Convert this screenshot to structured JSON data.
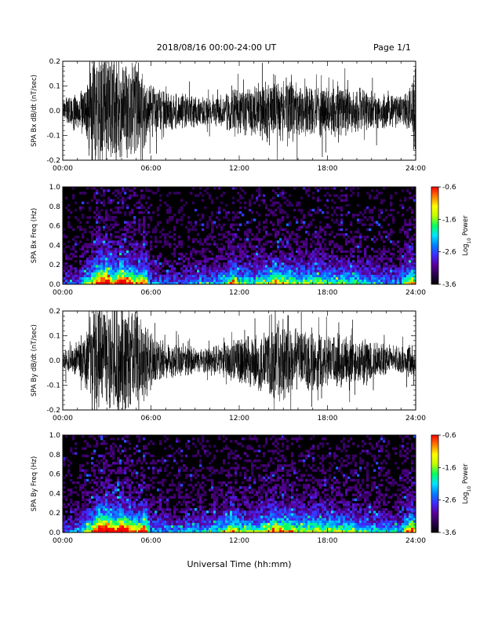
{
  "header": {
    "title": "2018/08/16  00:00-24:00 UT",
    "page": "Page 1/1"
  },
  "x_axis_label": "Universal Time (hh:mm)",
  "colors": {
    "trace": "#000000",
    "spectrogram_background": "#000000",
    "colorscale": [
      "#000000",
      "#2a004f",
      "#5a0099",
      "#3f2bff",
      "#0080ff",
      "#00e5ff",
      "#00ff60",
      "#c0ff00",
      "#ffff00",
      "#ff8000",
      "#ff0000"
    ]
  },
  "colorbar": {
    "label": "Log10 Power",
    "label_prefix": "Log",
    "label_subscript": "10",
    "label_suffix": " Power",
    "ticks": [
      "-0.6",
      "-1.6",
      "-2.6",
      "-3.6"
    ],
    "range": [
      -3.6,
      -0.6
    ]
  },
  "chart_data": [
    {
      "type": "line",
      "ylabel": "SPA Bx dB/dt (nT/sec)",
      "xlim": [
        0,
        24
      ],
      "ylim": [
        -0.2,
        0.2
      ],
      "xticks": [
        "00:00",
        "06:00",
        "12:00",
        "18:00",
        "24:00"
      ],
      "yticks": [
        "0.2",
        "0.1",
        "0.0",
        "-0.1",
        "-0.2"
      ],
      "envelope_hours": [
        0,
        1,
        1.5,
        2,
        2.5,
        3,
        3.5,
        4,
        4.5,
        5,
        5.5,
        6,
        7,
        8,
        9,
        10,
        11,
        11.5,
        12,
        13,
        14,
        14.5,
        15,
        16,
        17,
        18,
        19,
        20,
        21,
        22,
        23,
        23.7,
        24
      ],
      "envelope_amplitude": [
        0.06,
        0.07,
        0.12,
        0.25,
        0.25,
        0.25,
        0.25,
        0.25,
        0.22,
        0.2,
        0.18,
        0.12,
        0.09,
        0.08,
        0.07,
        0.07,
        0.08,
        0.11,
        0.1,
        0.12,
        0.14,
        0.16,
        0.15,
        0.13,
        0.12,
        0.11,
        0.12,
        0.1,
        0.09,
        0.08,
        0.07,
        0.1,
        0.25
      ]
    },
    {
      "type": "heatmap",
      "ylabel": "SPA Bx Freq (Hz)",
      "xlim": [
        0,
        24
      ],
      "ylim": [
        0,
        1
      ],
      "xticks": [
        "00:00",
        "06:00",
        "12:00",
        "18:00",
        "24:00"
      ],
      "yticks": [
        "1.0",
        "0.8",
        "0.6",
        "0.4",
        "0.2",
        "0.0"
      ],
      "zlim": [
        -3.6,
        -0.6
      ],
      "activity_hours": [
        0,
        1,
        2,
        2.5,
        3,
        3.5,
        4,
        4.5,
        5,
        5.5,
        6,
        7,
        8,
        9,
        10,
        11,
        11.5,
        12,
        13,
        14,
        14.5,
        15,
        16,
        17,
        18,
        19,
        20,
        21,
        22,
        23,
        23.8,
        24
      ],
      "activity_level": [
        0.2,
        0.25,
        0.55,
        0.8,
        0.9,
        0.6,
        0.85,
        0.7,
        0.55,
        0.7,
        0.3,
        0.25,
        0.25,
        0.3,
        0.3,
        0.4,
        0.6,
        0.45,
        0.4,
        0.5,
        0.6,
        0.55,
        0.45,
        0.5,
        0.45,
        0.45,
        0.4,
        0.35,
        0.3,
        0.3,
        0.7,
        0.5
      ]
    },
    {
      "type": "line",
      "ylabel": "SPA By dB/dt (nT/sec)",
      "xlim": [
        0,
        24
      ],
      "ylim": [
        -0.2,
        0.2
      ],
      "xticks": [
        "00:00",
        "06:00",
        "12:00",
        "18:00",
        "24:00"
      ],
      "yticks": [
        "0.2",
        "0.1",
        "0.0",
        "-0.1",
        "-0.2"
      ],
      "envelope_hours": [
        0,
        1,
        1.5,
        2,
        2.5,
        3,
        3.5,
        4,
        4.5,
        5,
        5.5,
        6,
        7,
        8,
        9,
        10,
        11,
        11.5,
        12,
        13,
        14,
        14.5,
        15,
        16,
        17,
        18,
        19,
        20,
        21,
        22,
        23,
        23.7,
        24
      ],
      "envelope_amplitude": [
        0.05,
        0.06,
        0.12,
        0.22,
        0.25,
        0.25,
        0.25,
        0.25,
        0.25,
        0.22,
        0.2,
        0.12,
        0.08,
        0.07,
        0.06,
        0.06,
        0.08,
        0.1,
        0.11,
        0.12,
        0.16,
        0.18,
        0.18,
        0.15,
        0.14,
        0.12,
        0.12,
        0.1,
        0.09,
        0.07,
        0.06,
        0.08,
        0.05
      ]
    },
    {
      "type": "heatmap",
      "ylabel": "SPA By Freq (Hz)",
      "xlim": [
        0,
        24
      ],
      "ylim": [
        0,
        1
      ],
      "xticks": [
        "00:00",
        "06:00",
        "12:00",
        "18:00",
        "24:00"
      ],
      "yticks": [
        "1.0",
        "0.8",
        "0.6",
        "0.4",
        "0.2",
        "0.0"
      ],
      "zlim": [
        -3.6,
        -0.6
      ],
      "activity_hours": [
        0,
        1,
        2,
        2.5,
        3,
        3.5,
        4,
        4.5,
        5,
        5.5,
        6,
        7,
        8,
        9,
        10,
        11,
        11.5,
        12,
        13,
        14,
        14.5,
        15,
        16,
        17,
        18,
        19,
        20,
        21,
        22,
        23,
        23.8,
        24
      ],
      "activity_level": [
        0.25,
        0.3,
        0.6,
        0.85,
        0.95,
        0.65,
        0.9,
        0.75,
        0.6,
        0.75,
        0.35,
        0.3,
        0.3,
        0.35,
        0.35,
        0.45,
        0.65,
        0.5,
        0.45,
        0.55,
        0.65,
        0.6,
        0.5,
        0.55,
        0.5,
        0.5,
        0.45,
        0.4,
        0.35,
        0.35,
        0.75,
        0.55
      ]
    }
  ]
}
